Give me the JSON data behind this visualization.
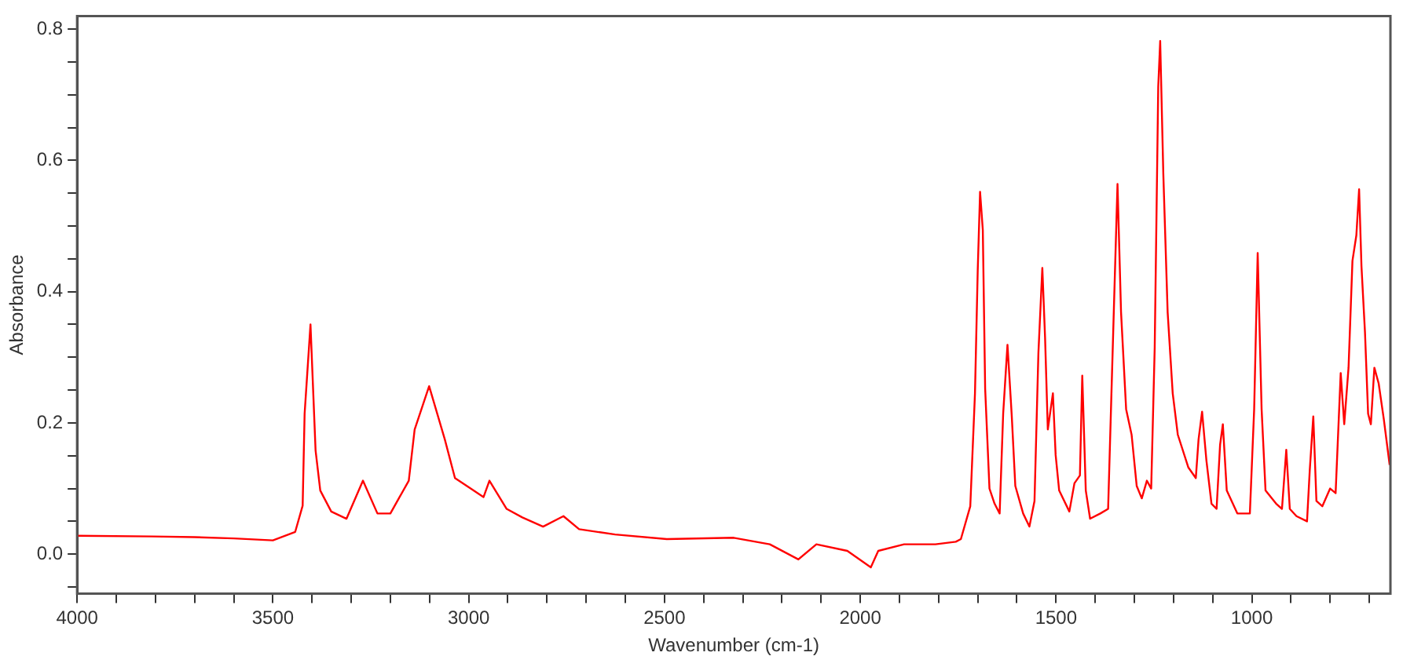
{
  "chart_data": {
    "type": "line",
    "xlabel": "Wavenumber (cm-1)",
    "ylabel": "Absorbance",
    "x": [
      4000,
      3808,
      3700,
      3600,
      3500,
      3443,
      3424,
      3419,
      3404,
      3391,
      3379,
      3351,
      3312,
      3270,
      3233,
      3200,
      3153,
      3138,
      3101,
      3061,
      3035,
      2995,
      2962,
      2947,
      2903,
      2863,
      2810,
      2758,
      2718,
      2626,
      2494,
      2323,
      2231,
      2158,
      2112,
      2033,
      1973,
      1954,
      1888,
      1808,
      1756,
      1743,
      1719,
      1707,
      1700,
      1694,
      1687,
      1681,
      1670,
      1657,
      1644,
      1635,
      1624,
      1613,
      1604,
      1584,
      1568,
      1555,
      1545,
      1535,
      1528,
      1521,
      1508,
      1501,
      1492,
      1466,
      1453,
      1439,
      1433,
      1424,
      1413,
      1387,
      1367,
      1354,
      1343,
      1334,
      1321,
      1307,
      1294,
      1281,
      1268,
      1257,
      1248,
      1239,
      1234,
      1226,
      1215,
      1202,
      1189,
      1162,
      1143,
      1136,
      1127,
      1116,
      1103,
      1090,
      1081,
      1074,
      1064,
      1037,
      1005,
      994,
      985,
      975,
      965,
      938,
      923,
      912,
      903,
      886,
      859,
      852,
      843,
      835,
      820,
      800,
      786,
      773,
      764,
      753,
      743,
      733,
      726,
      720,
      711,
      703,
      696,
      687,
      676,
      663,
      648
    ],
    "values": [
      0.028,
      0.027,
      0.026,
      0.024,
      0.021,
      0.034,
      0.074,
      0.214,
      0.35,
      0.158,
      0.097,
      0.065,
      0.054,
      0.112,
      0.062,
      0.062,
      0.112,
      0.19,
      0.256,
      0.175,
      0.116,
      0.1,
      0.087,
      0.112,
      0.069,
      0.056,
      0.042,
      0.058,
      0.038,
      0.03,
      0.023,
      0.025,
      0.015,
      -0.008,
      0.015,
      0.005,
      -0.02,
      0.005,
      0.015,
      0.015,
      0.019,
      0.023,
      0.073,
      0.245,
      0.432,
      0.552,
      0.494,
      0.252,
      0.1,
      0.077,
      0.062,
      0.214,
      0.319,
      0.21,
      0.104,
      0.062,
      0.042,
      0.081,
      0.307,
      0.436,
      0.33,
      0.19,
      0.245,
      0.151,
      0.097,
      0.065,
      0.108,
      0.12,
      0.272,
      0.097,
      0.054,
      0.062,
      0.069,
      0.338,
      0.564,
      0.369,
      0.221,
      0.182,
      0.104,
      0.085,
      0.112,
      0.1,
      0.315,
      0.712,
      0.782,
      0.579,
      0.369,
      0.245,
      0.182,
      0.132,
      0.116,
      0.175,
      0.217,
      0.143,
      0.077,
      0.069,
      0.167,
      0.198,
      0.097,
      0.062,
      0.062,
      0.221,
      0.459,
      0.221,
      0.097,
      0.077,
      0.069,
      0.159,
      0.069,
      0.058,
      0.05,
      0.128,
      0.21,
      0.081,
      0.073,
      0.1,
      0.093,
      0.276,
      0.198,
      0.284,
      0.447,
      0.486,
      0.556,
      0.439,
      0.338,
      0.214,
      0.198,
      0.284,
      0.26,
      0.206,
      0.136
    ],
    "color": "#ff0000",
    "xlim": [
      4000,
      646
    ],
    "xticks": [
      4000,
      {
        "value": 3900,
        "label": null
      },
      {
        "value": 3800,
        "label": null
      },
      {
        "value": 3700,
        "label": null
      },
      {
        "value": 3600,
        "label": null
      },
      3500,
      {
        "value": 3400,
        "label": null
      },
      {
        "value": 3300,
        "label": null
      },
      {
        "value": 3200,
        "label": null
      },
      {
        "value": 3100,
        "label": null
      },
      3000,
      {
        "value": 2900,
        "label": null
      },
      {
        "value": 2800,
        "label": null
      },
      {
        "value": 2700,
        "label": null
      },
      {
        "value": 2600,
        "label": null
      },
      2500,
      {
        "value": 2400,
        "label": null
      },
      {
        "value": 2300,
        "label": null
      },
      {
        "value": 2200,
        "label": null
      },
      {
        "value": 2100,
        "label": null
      },
      2000,
      {
        "value": 1900,
        "label": null
      },
      {
        "value": 1800,
        "label": null
      },
      {
        "value": 1700,
        "label": null
      },
      {
        "value": 1600,
        "label": null
      },
      1500,
      {
        "value": 1400,
        "label": null
      },
      {
        "value": 1300,
        "label": null
      },
      {
        "value": 1200,
        "label": null
      },
      {
        "value": 1100,
        "label": null
      },
      1000,
      {
        "value": 900,
        "label": null
      },
      {
        "value": 800,
        "label": null
      },
      {
        "value": 700,
        "label": null
      }
    ],
    "ylim": [
      -0.06,
      0.82
    ],
    "yticks": [
      {
        "value": -0.05,
        "label": null
      },
      {
        "value": 0,
        "label": "0.0"
      },
      {
        "value": 0.05,
        "label": null
      },
      {
        "value": 0.1,
        "label": null
      },
      {
        "value": 0.15,
        "label": null
      },
      0.2,
      {
        "value": 0.25,
        "label": null
      },
      {
        "value": 0.3,
        "label": null
      },
      {
        "value": 0.35,
        "label": null
      },
      0.4,
      {
        "value": 0.45,
        "label": null
      },
      {
        "value": 0.5,
        "label": null
      },
      {
        "value": 0.55,
        "label": null
      },
      0.6,
      {
        "value": 0.65,
        "label": null
      },
      {
        "value": 0.7,
        "label": null
      },
      {
        "value": 0.75,
        "label": null
      },
      0.8
    ],
    "grid": false,
    "legend": false,
    "marker": "none",
    "line_style": "solid"
  }
}
